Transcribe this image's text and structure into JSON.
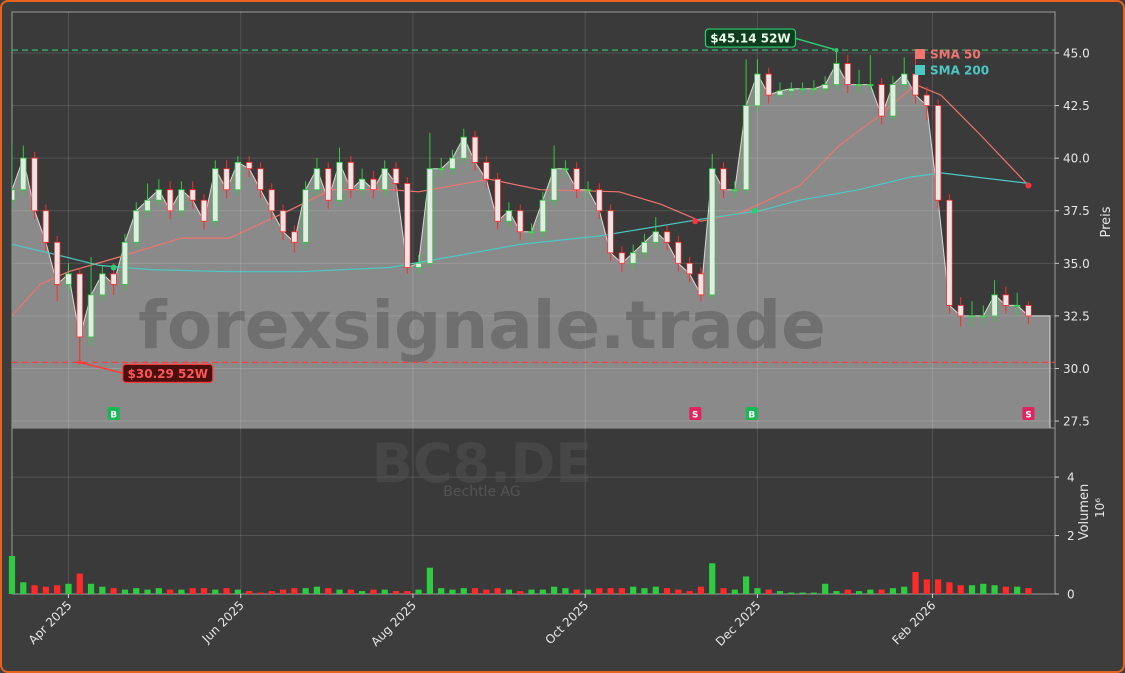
{
  "chart_data": [
    {
      "type": "candlestick",
      "watermark": "forexsignale.trade",
      "ylabel": "Preis",
      "x": [
        0,
        4,
        8,
        12,
        16,
        20,
        24,
        28,
        32,
        36,
        40,
        44,
        48,
        52,
        56,
        60,
        64,
        68,
        72,
        76,
        80,
        84,
        88,
        92,
        96,
        100,
        104,
        108,
        112,
        116,
        120,
        124,
        128,
        132,
        136,
        140,
        144,
        148,
        152,
        156,
        160,
        164,
        168,
        172,
        176,
        180,
        184,
        188,
        192,
        196,
        200,
        204,
        208,
        212,
        216,
        220,
        224,
        228,
        232,
        236,
        240,
        244,
        248,
        252,
        256,
        260,
        264,
        268,
        272,
        276,
        280,
        284,
        288,
        292,
        296,
        300,
        304,
        308,
        312,
        316,
        320,
        324,
        328,
        332,
        336,
        340,
        344,
        348,
        352,
        356,
        360
      ],
      "open": [
        38,
        38.5,
        40,
        37.5,
        36,
        34,
        34.5,
        31.5,
        33.5,
        34.5,
        34,
        36,
        37.5,
        38,
        38.5,
        37.5,
        38.5,
        38,
        37,
        39.5,
        38.5,
        39.8,
        39.5,
        38.5,
        37.5,
        36.5,
        36,
        38.5,
        39.5,
        38,
        39.8,
        38.5,
        39,
        38.5,
        39.5,
        38.8,
        34.8,
        35,
        39.5,
        39.5,
        40,
        41,
        39.8,
        39,
        37,
        37.5,
        36.5,
        36.5,
        38,
        39.5,
        39.5,
        38.5,
        38.5,
        37.5,
        35.5,
        35,
        35.5,
        36,
        36.5,
        36,
        35,
        34.5,
        33.5,
        39.5,
        38.5,
        38.5,
        42.5,
        44,
        43,
        43.2,
        43.3,
        43.3,
        43.3,
        43.5,
        44.5,
        43.5,
        43.5,
        43.5,
        42,
        43.5,
        44,
        43,
        42.5,
        38,
        33,
        32.5,
        32.5,
        32.5,
        33.5,
        33,
        33
      ],
      "high": [
        40.7,
        40.6,
        40.3,
        37.8,
        36.3,
        35,
        34.8,
        35.3,
        34.9,
        35,
        36.4,
        37.9,
        38.8,
        39,
        38.9,
        38.9,
        38.9,
        38.3,
        39.9,
        39.9,
        40.1,
        40.1,
        39.8,
        38.8,
        37.8,
        36.8,
        38.9,
        40,
        39.8,
        40.5,
        40.1,
        39.5,
        39.4,
        39.9,
        39.8,
        39.1,
        35.4,
        41.2,
        40,
        40.4,
        41.4,
        41.3,
        40.1,
        39.3,
        37.9,
        37.8,
        36.9,
        38.4,
        40.6,
        39.9,
        39.8,
        38.9,
        38.8,
        37.8,
        35.8,
        35.9,
        36.4,
        37.2,
        36.8,
        36.3,
        35.3,
        34.8,
        40.2,
        39.8,
        38.9,
        44.7,
        44.7,
        44.3,
        43.6,
        43.6,
        43.6,
        43.7,
        43.9,
        45.14,
        44.9,
        44.2,
        44.9,
        43.8,
        43.9,
        44.8,
        44.9,
        43.4,
        42.8,
        38.3,
        33.4,
        33.2,
        33,
        34.2,
        33.9,
        33.6,
        33.2
      ],
      "low": [
        37.6,
        38.2,
        37.1,
        35.6,
        33.2,
        33.6,
        30.29,
        31.1,
        33.2,
        33.5,
        33.7,
        35.7,
        37.2,
        37.7,
        37.1,
        37.2,
        37.6,
        36.6,
        36.7,
        38.1,
        38.2,
        39.1,
        38.1,
        37.1,
        36.1,
        35.5,
        35.7,
        38.2,
        37.6,
        37.7,
        38.1,
        38.2,
        38.1,
        38.2,
        38.4,
        34.5,
        34.5,
        34.8,
        39.1,
        39.2,
        39.7,
        39.4,
        38.6,
        36.6,
        36.7,
        36.1,
        36.1,
        36.2,
        37.7,
        39.1,
        38.1,
        38.1,
        37.1,
        35.1,
        34.6,
        34.7,
        35.2,
        35.7,
        35.6,
        34.6,
        34.1,
        33.2,
        33.3,
        38.1,
        38.1,
        38.3,
        42.2,
        42.6,
        42.8,
        42.9,
        43,
        43,
        43.1,
        43.2,
        43.1,
        43.1,
        43.1,
        41.6,
        41.8,
        43.2,
        42.6,
        41.8,
        37.6,
        32.6,
        32,
        32,
        32.1,
        32.2,
        32.6,
        32.5,
        32.1
      ],
      "close": [
        38.5,
        40,
        37.5,
        36,
        34,
        34.5,
        31.5,
        33.5,
        34.5,
        34,
        36,
        37.5,
        38,
        38.5,
        37.5,
        38.5,
        38,
        37,
        39.5,
        38.5,
        39.8,
        39.5,
        38.5,
        37.5,
        36.5,
        36,
        38.5,
        39.5,
        38,
        39.8,
        38.5,
        39,
        38.5,
        39.5,
        38.8,
        34.8,
        35,
        39.5,
        39.5,
        40,
        41,
        39.8,
        39,
        37,
        37.5,
        36.5,
        36.5,
        38,
        39.5,
        39.5,
        38.5,
        38.5,
        37.5,
        35.5,
        35,
        35.5,
        36,
        36.5,
        36,
        35,
        34.5,
        33.5,
        39.5,
        38.5,
        38.5,
        42.5,
        44,
        43,
        43.2,
        43.3,
        43.3,
        43.3,
        43.5,
        44.5,
        43.5,
        43.5,
        43.5,
        42,
        43.5,
        44,
        43,
        42.5,
        38,
        33,
        32.5,
        32.5,
        32.5,
        33.5,
        33,
        33,
        32.5
      ],
      "up_color": "#2ecc40",
      "down_color": "#ff2a2a",
      "area_color": "#8a8a8a",
      "xlim": [
        0,
        369.4
      ],
      "xticks": [
        {
          "value": 20,
          "label": "Apr 2025"
        },
        {
          "value": 81,
          "label": "Jun 2025"
        },
        {
          "value": 142,
          "label": "Aug 2025"
        },
        {
          "value": 203,
          "label": "Oct 2025"
        },
        {
          "value": 264,
          "label": "Dec 2025"
        },
        {
          "value": 326,
          "label": "Feb 2026"
        }
      ],
      "ylim": [
        27.17,
        46.95
      ],
      "yticks": [
        27.5,
        {
          "value": 30,
          "label": "30.0"
        },
        32.5,
        {
          "value": 35,
          "label": "35.0"
        },
        37.5,
        {
          "value": 40,
          "label": "40.0"
        },
        42.5,
        {
          "value": 45,
          "label": "45.0"
        }
      ],
      "grid": true,
      "legend": "upper right",
      "series": [
        {
          "name": "SMA 50",
          "color": "#f07470",
          "x": [
            0,
            10,
            20,
            38,
            60,
            77,
            98,
            113,
            134,
            144,
            169,
            187,
            215,
            230,
            244,
            258,
            279,
            293,
            307,
            320,
            329,
            343,
            360
          ],
          "values": [
            32.5,
            34,
            34.6,
            35.3,
            36.2,
            36.2,
            37.5,
            38.5,
            38.5,
            38.4,
            39,
            38.5,
            38.4,
            37.8,
            37,
            37.4,
            38.7,
            40.6,
            42,
            43.5,
            43,
            41.1,
            38.7
          ]
        },
        {
          "name": "SMA 200",
          "color": "#4cc9c4",
          "x": [
            0,
            13,
            31,
            49,
            77,
            102,
            134,
            155,
            180,
            208,
            244,
            265,
            279,
            300,
            318,
            329,
            360
          ],
          "values": [
            35.9,
            35.5,
            34.9,
            34.7,
            34.6,
            34.6,
            34.8,
            35.3,
            35.9,
            36.3,
            37.1,
            37.5,
            38,
            38.5,
            39.1,
            39.3,
            38.8
          ]
        }
      ],
      "crosses": {
        "x": [
          36,
          242,
          263,
          360
        ],
        "values": [
          34.8,
          37,
          37.5,
          38.7
        ],
        "colors": [
          "#2ecc71",
          "#ff3040",
          "#2ecc71",
          "#ff3040"
        ]
      },
      "signals": {
        "x": [
          36,
          242,
          262,
          360
        ],
        "labels": [
          "B",
          "S",
          "B",
          "S"
        ],
        "colors": [
          "#17b955",
          "#e0245e",
          "#17b955",
          "#e0245e"
        ]
      },
      "annotations": [
        {
          "text": "$45.14 52W",
          "value": 45.14,
          "x": 292,
          "color": "#2ecc71"
        },
        {
          "text": "$30.29 52W",
          "value": 30.29,
          "x": 24,
          "color": "#ff3b3b"
        }
      ]
    },
    {
      "type": "bar",
      "watermark": "BC8.DE",
      "watermark_subtitle": "Bechtle AG",
      "ylabel": "Volumen",
      "offset_label": "10⁶",
      "values": [
        1.3,
        0.4,
        0.3,
        0.25,
        0.3,
        0.35,
        0.7,
        0.35,
        0.25,
        0.2,
        0.15,
        0.2,
        0.15,
        0.2,
        0.15,
        0.15,
        0.2,
        0.2,
        0.15,
        0.2,
        0.15,
        0.1,
        0.05,
        0.1,
        0.15,
        0.2,
        0.2,
        0.25,
        0.2,
        0.15,
        0.15,
        0.1,
        0.15,
        0.15,
        0.1,
        0.1,
        0.15,
        0.9,
        0.2,
        0.15,
        0.2,
        0.2,
        0.15,
        0.2,
        0.15,
        0.1,
        0.15,
        0.15,
        0.25,
        0.2,
        0.15,
        0.15,
        0.2,
        0.2,
        0.2,
        0.25,
        0.2,
        0.25,
        0.2,
        0.15,
        0.1,
        0.25,
        1.05,
        0.2,
        0.15,
        0.6,
        0.2,
        0.15,
        0.1,
        0.05,
        0.05,
        0.05,
        0.35,
        0.1,
        0.15,
        0.1,
        0.15,
        0.15,
        0.2,
        0.25,
        0.75,
        0.5,
        0.5,
        0.4,
        0.3,
        0.3,
        0.35,
        0.3,
        0.25,
        0.25,
        0.2
      ],
      "ylim": [
        0,
        5.68
      ],
      "yticks": [
        0,
        2,
        4
      ],
      "grid": true
    }
  ]
}
